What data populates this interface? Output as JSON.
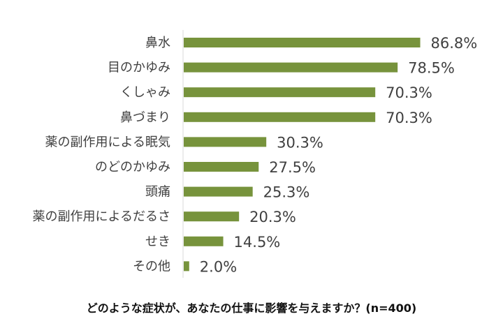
{
  "chart_data": {
    "type": "bar",
    "orientation": "horizontal",
    "categories": [
      "鼻水",
      "目のかゆみ",
      "くしゃみ",
      "鼻づまり",
      "薬の副作用による眠気",
      "のどのかゆみ",
      "頭痛",
      "薬の副作用によるだるさ",
      "せき",
      "その他"
    ],
    "values": [
      86.8,
      78.5,
      70.3,
      70.3,
      30.3,
      27.5,
      25.3,
      20.3,
      14.5,
      2.0
    ],
    "value_labels": [
      "86.8%",
      "78.5%",
      "70.3%",
      "70.3%",
      "30.3%",
      "27.5%",
      "25.3%",
      "20.3%",
      "14.5%",
      "2.0%"
    ],
    "xlim": [
      0,
      100
    ],
    "grid": false,
    "legend": "none",
    "bar_color": "#77933c",
    "caption": "どのような症状が、あなたの仕事に影響を与えますか？(n=400)"
  }
}
